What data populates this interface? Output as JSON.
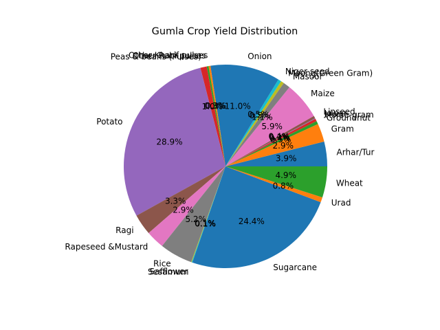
{
  "chart_data": {
    "type": "pie",
    "title": "Gumla Crop Yield Distribution",
    "start_angle_deg": 0,
    "direction": "counterclockwise",
    "autopct_format": "{:.1f}%",
    "slices": [
      {
        "label": "Arhar/Tur",
        "value": 3.9,
        "color": "#1f77b4"
      },
      {
        "label": "Gram",
        "value": 2.9,
        "color": "#ff7f0e"
      },
      {
        "label": "Groundnut",
        "value": 0.5,
        "color": "#2ca02c"
      },
      {
        "label": "Horse-gram",
        "value": 0.4,
        "color": "#d62728"
      },
      {
        "label": "Jowar",
        "value": 0.1,
        "color": "#9467bd"
      },
      {
        "label": "Linseed",
        "value": 0.4,
        "color": "#8c564b"
      },
      {
        "label": "Maize",
        "value": 5.9,
        "color": "#e377c2"
      },
      {
        "label": "Masoor",
        "value": 1.1,
        "color": "#7f7f7f"
      },
      {
        "label": "Moong(Green Gram)",
        "value": 0.5,
        "color": "#bcbd22"
      },
      {
        "label": "Niger seed",
        "value": 0.5,
        "color": "#17becf"
      },
      {
        "label": "Onion",
        "value": 11.0,
        "color": "#1f77b4"
      },
      {
        "label": "Other Kharif pulses",
        "value": 0.3,
        "color": "#ff7f0e"
      },
      {
        "label": "Other Rabi pulses",
        "value": 0.3,
        "color": "#2ca02c"
      },
      {
        "label": "Peas & beans (Pulses)",
        "value": 1.0,
        "color": "#d62728"
      },
      {
        "label": "Potato",
        "value": 28.9,
        "color": "#9467bd"
      },
      {
        "label": "Ragi",
        "value": 3.3,
        "color": "#8c564b"
      },
      {
        "label": "Rapeseed &Mustard",
        "value": 2.9,
        "color": "#e377c2"
      },
      {
        "label": "Rice",
        "value": 5.2,
        "color": "#7f7f7f"
      },
      {
        "label": "Safflower",
        "value": 0.1,
        "color": "#bcbd22"
      },
      {
        "label": "Sesamum",
        "value": 0.1,
        "color": "#17becf"
      },
      {
        "label": "Sugarcane",
        "value": 24.4,
        "color": "#1f77b4"
      },
      {
        "label": "Urad",
        "value": 0.8,
        "color": "#ff7f0e"
      },
      {
        "label": "Wheat",
        "value": 4.9,
        "color": "#2ca02c"
      }
    ]
  }
}
